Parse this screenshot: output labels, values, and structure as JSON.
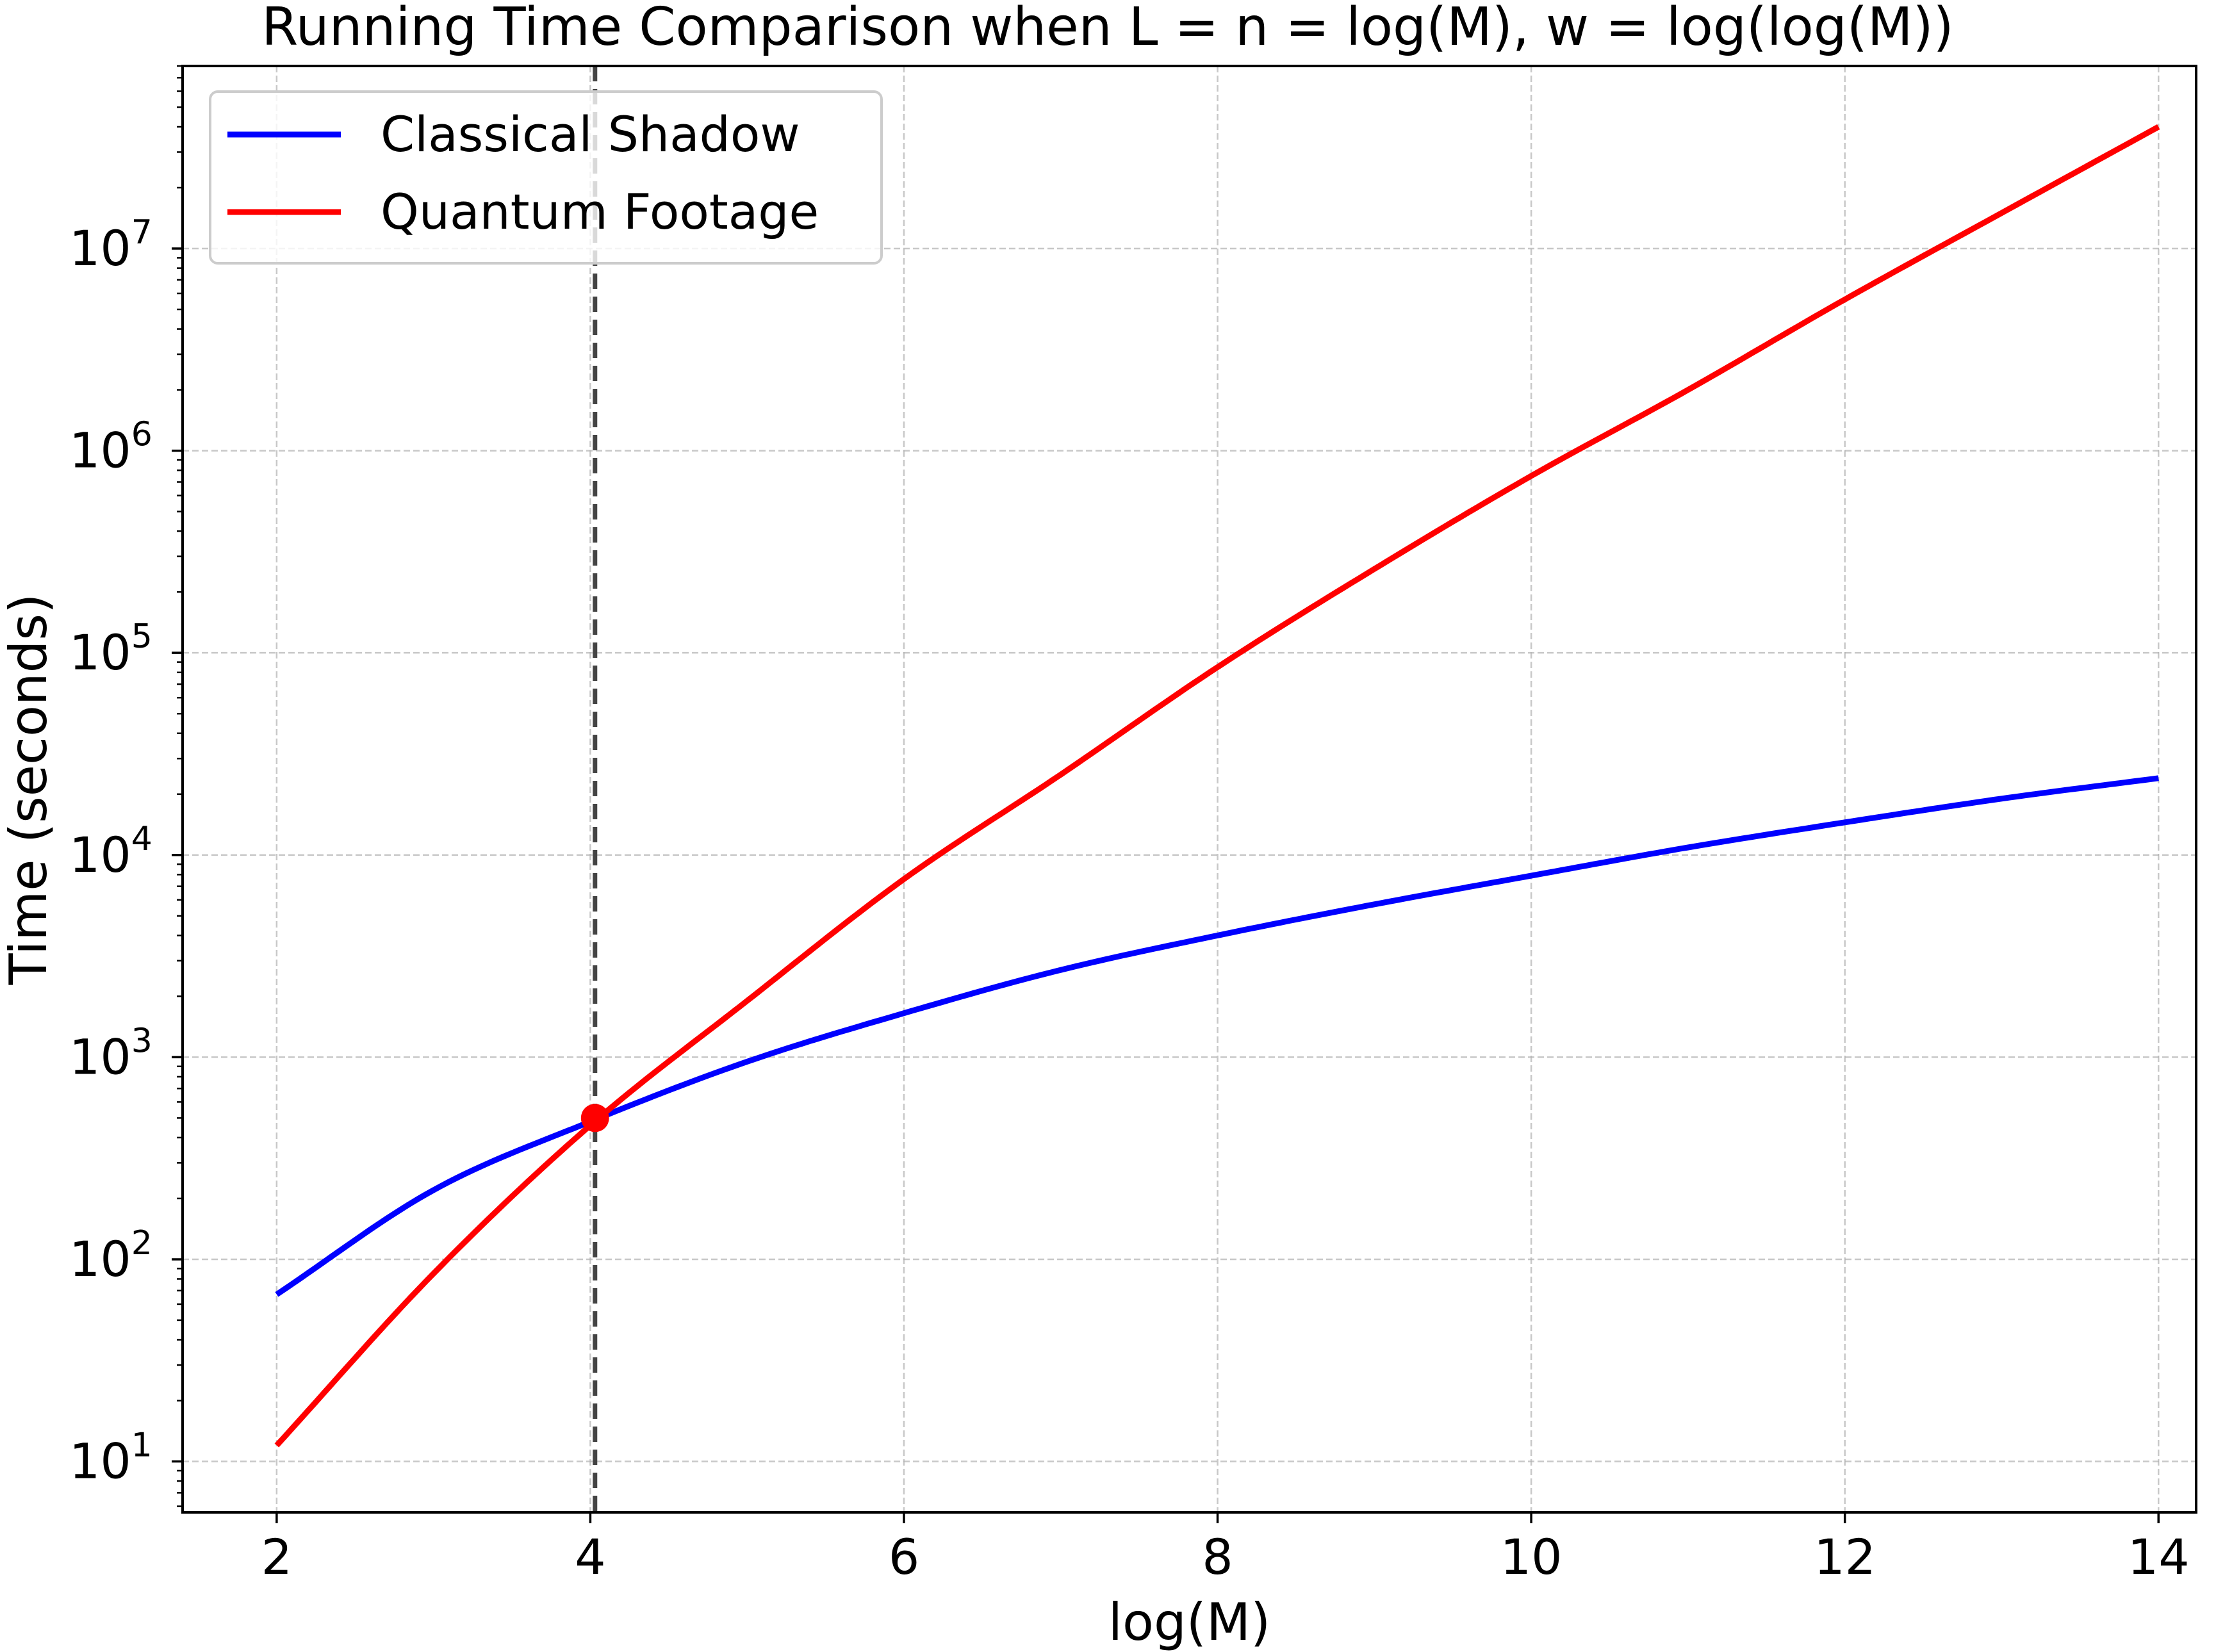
{
  "chart_data": {
    "type": "line",
    "title": "Running Time Comparison when L = n = log(M), w = log(log(M))",
    "xlabel": "log(M)",
    "ylabel": "Time (seconds)",
    "xlim": [
      1.4,
      14.24
    ],
    "ylim": [
      5.6,
      80000000
    ],
    "yscale": "log",
    "grid": true,
    "legend_position": "top-left",
    "x_ticks": [
      2,
      4,
      6,
      8,
      10,
      12,
      14
    ],
    "y_ticks": [
      {
        "value": 10,
        "base": "10",
        "exp": "1"
      },
      {
        "value": 100,
        "base": "10",
        "exp": "2"
      },
      {
        "value": 1000,
        "base": "10",
        "exp": "3"
      },
      {
        "value": 10000,
        "base": "10",
        "exp": "4"
      },
      {
        "value": 100000,
        "base": "10",
        "exp": "5"
      },
      {
        "value": 1000000,
        "base": "10",
        "exp": "6"
      },
      {
        "value": 10000000,
        "base": "10",
        "exp": "7"
      }
    ],
    "series": [
      {
        "name": "Classical Shadow",
        "color": "#0000ff",
        "x": [
          2,
          3,
          4,
          5,
          6,
          7,
          8,
          9,
          10,
          11,
          12,
          13,
          14
        ],
        "y": [
          67,
          220,
          480,
          950,
          1650,
          2700,
          4000,
          5700,
          7900,
          10900,
          14500,
          19000,
          24000
        ]
      },
      {
        "name": "Quantum Footage",
        "color": "#ff0000",
        "x": [
          2,
          3,
          4,
          5,
          6,
          7,
          8,
          9,
          10,
          11,
          12,
          13,
          14
        ],
        "y": [
          12,
          85,
          460,
          1900,
          7600,
          25000,
          85000,
          260000,
          750000,
          2000000,
          5600000,
          15000000,
          40000000
        ]
      }
    ],
    "crossover": {
      "x": 4.03,
      "y": 500,
      "color": "#ff0000"
    },
    "vline": {
      "x": 4.03,
      "color": "#444444",
      "style": "dashed"
    }
  }
}
